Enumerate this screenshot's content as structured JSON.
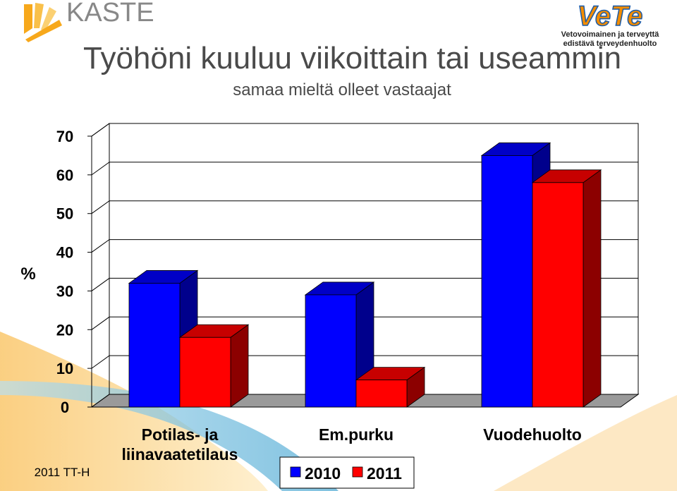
{
  "header": {
    "logo": "KASTE",
    "brand": "VeTe",
    "brand_line1": "Vetovoimainen ja terveyttä",
    "brand_line2": "edistävä terveydenhuolto"
  },
  "footer": "2011 TT-H",
  "chart_data": {
    "type": "bar3d",
    "title": "Työhöni kuuluu viikoittain tai useammin",
    "subtitle": "samaa mieltä olleet vastaajat",
    "y_label": "%",
    "categories": [
      "Potilas- ja liinavaatetilaus",
      "Em.purku",
      "Vuodehuolto"
    ],
    "series": [
      {
        "name": "2010",
        "color": "#0000ff",
        "values": [
          32,
          29,
          65
        ]
      },
      {
        "name": "2011",
        "color": "#ff0000",
        "values": [
          18,
          7,
          58
        ]
      }
    ],
    "ylim": [
      0,
      70
    ],
    "yticks": [
      0,
      10,
      20,
      30,
      40,
      50,
      60,
      70
    ],
    "grid": true,
    "legend": "bottom"
  }
}
